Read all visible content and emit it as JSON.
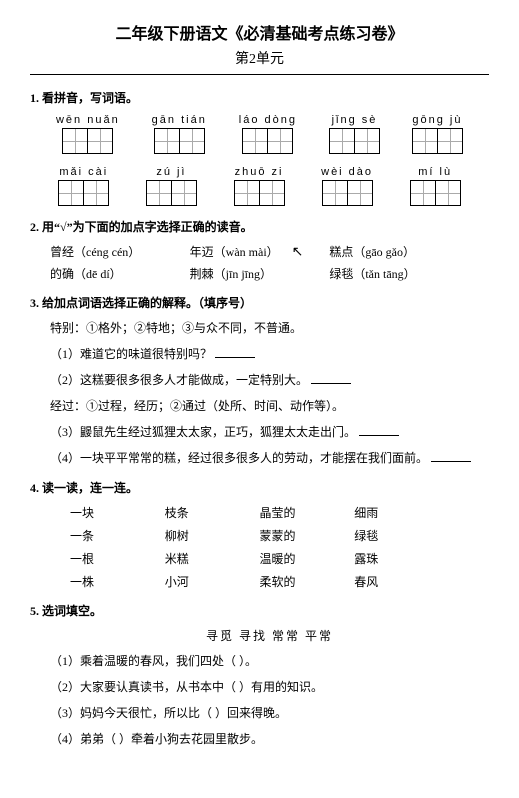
{
  "title": "二年级下册语文《必清基础考点练习卷》",
  "subtitle": "第2单元",
  "s1": {
    "head": "1. 看拼音，写词语。",
    "rows": [
      [
        {
          "py": "wēn nuǎn",
          "cells": 2
        },
        {
          "py": "gān  tián",
          "cells": 2
        },
        {
          "py": "láo  dòng",
          "cells": 2
        },
        {
          "py": "jǐng  sè",
          "cells": 2
        },
        {
          "py": "gōng  jù",
          "cells": 2
        }
      ],
      [
        {
          "py": "mǎi  cài",
          "cells": 2
        },
        {
          "py": "zú   jì",
          "cells": 2
        },
        {
          "py": "zhuō  zi",
          "cells": 2
        },
        {
          "py": "wèi  dào",
          "cells": 2
        },
        {
          "py": "mí   lù",
          "cells": 2
        }
      ]
    ]
  },
  "s2": {
    "head": "2. 用“√”为下面的加点字选择正确的读音。",
    "lines": [
      [
        "曾经（céng  cén）",
        "年迈（wàn  mài）",
        "糕点（gāo  gǎo）"
      ],
      [
        "的确（dē  dí）",
        "荆棘（jīn  jīng）",
        "绿毯（tǎn  tāng）"
      ]
    ]
  },
  "s3": {
    "head": "3. 给加点词语选择正确的解释。（填序号）",
    "def1": "特别：①格外；②特地；③与众不同，不普通。",
    "q1": "（1）难道它的味道很特别吗？",
    "q2": "（2）这糕要很多很多人才能做成，一定特别大。",
    "def2": "经过：①过程，经历；②通过（处所、时间、动作等）。",
    "q3": "（3）鼹鼠先生经过狐狸太太家，正巧，狐狸太太走出门。",
    "q4": "（4）一块平平常常的糕，经过很多很多人的劳动，才能摆在我们面前。"
  },
  "s4": {
    "head": "4. 读一读，连一连。",
    "rows": [
      [
        "一块",
        "枝条",
        "晶莹的",
        "细雨"
      ],
      [
        "一条",
        "柳树",
        "蒙蒙的",
        "绿毯"
      ],
      [
        "一根",
        "米糕",
        "温暖的",
        "露珠"
      ],
      [
        "一株",
        "小河",
        "柔软的",
        "春风"
      ]
    ]
  },
  "s5": {
    "head": "5. 选词填空。",
    "bank": "寻觅    寻找        常常    平常",
    "q1": "（1）乘着温暖的春风，我们四处（        ）。",
    "q2": "（2）大家要认真读书，从书本中（        ）有用的知识。",
    "q3": "（3）妈妈今天很忙，所以比（        ）回来得晚。",
    "q4": "（4）弟弟（        ）牵着小狗去花园里散步。"
  }
}
